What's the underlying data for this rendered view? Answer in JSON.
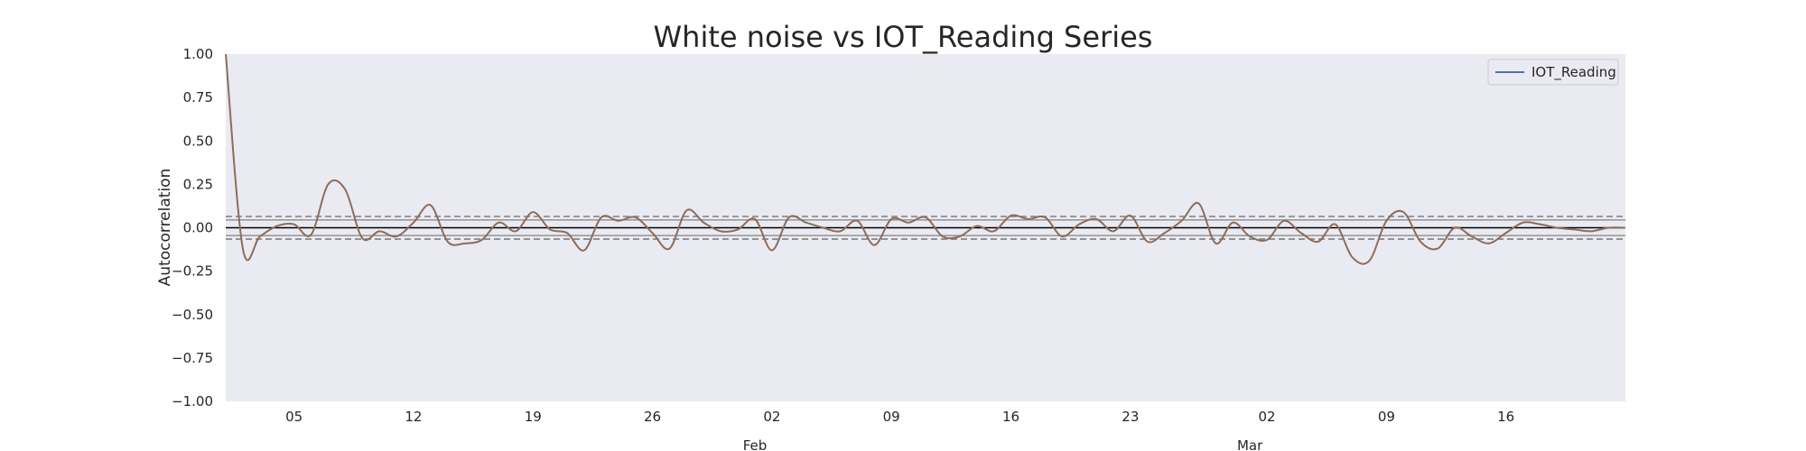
{
  "chart_data": {
    "type": "line",
    "title": "White noise vs IOT_Reading Series",
    "xlabel": "",
    "ylabel": "Autocorrelation",
    "ylim": [
      -1.0,
      1.0
    ],
    "yticks": [
      "1.00",
      "0.75",
      "0.50",
      "0.25",
      "0.00",
      "−0.25",
      "−0.50",
      "−0.75",
      "−1.00"
    ],
    "ytick_values": [
      1.0,
      0.75,
      0.5,
      0.25,
      0.0,
      -0.25,
      -0.5,
      -0.75,
      -1.0
    ],
    "x_start": "2024-01-01",
    "x_end": "2024-03-23",
    "xticks": [
      {
        "date": "2024-01-05",
        "label": "05"
      },
      {
        "date": "2024-01-12",
        "label": "12"
      },
      {
        "date": "2024-01-19",
        "label": "19"
      },
      {
        "date": "2024-01-26",
        "label": "26"
      },
      {
        "date": "2024-02-02",
        "label": "02"
      },
      {
        "date": "2024-02-09",
        "label": "09"
      },
      {
        "date": "2024-02-16",
        "label": "16"
      },
      {
        "date": "2024-02-23",
        "label": "23"
      },
      {
        "date": "2024-03-02",
        "label": "02"
      },
      {
        "date": "2024-03-09",
        "label": "09"
      },
      {
        "date": "2024-03-16",
        "label": "16"
      }
    ],
    "month_labels": [
      {
        "date": "2024-02-01",
        "label": "Feb"
      },
      {
        "date": "2024-03-01",
        "label": "Mar"
      }
    ],
    "series": [
      {
        "name": "IOT_Reading",
        "color": "#8c6d5c",
        "x": [
          "2024-01-01",
          "2024-01-02",
          "2024-01-03",
          "2024-01-04",
          "2024-01-05",
          "2024-01-06",
          "2024-01-07",
          "2024-01-08",
          "2024-01-09",
          "2024-01-10",
          "2024-01-11",
          "2024-01-12",
          "2024-01-13",
          "2024-01-14",
          "2024-01-15",
          "2024-01-16",
          "2024-01-17",
          "2024-01-18",
          "2024-01-19",
          "2024-01-20",
          "2024-01-21",
          "2024-01-22",
          "2024-01-23",
          "2024-01-24",
          "2024-01-25",
          "2024-01-26",
          "2024-01-27",
          "2024-01-28",
          "2024-01-29",
          "2024-01-30",
          "2024-01-31",
          "2024-02-01",
          "2024-02-02",
          "2024-02-03",
          "2024-02-04",
          "2024-02-05",
          "2024-02-06",
          "2024-02-07",
          "2024-02-08",
          "2024-02-09",
          "2024-02-10",
          "2024-02-11",
          "2024-02-12",
          "2024-02-13",
          "2024-02-14",
          "2024-02-15",
          "2024-02-16",
          "2024-02-17",
          "2024-02-18",
          "2024-02-19",
          "2024-02-20",
          "2024-02-21",
          "2024-02-22",
          "2024-02-23",
          "2024-02-24",
          "2024-02-25",
          "2024-02-26",
          "2024-02-27",
          "2024-02-28",
          "2024-02-29",
          "2024-03-01",
          "2024-03-02",
          "2024-03-03",
          "2024-03-04",
          "2024-03-05",
          "2024-03-06",
          "2024-03-07",
          "2024-03-08",
          "2024-03-09",
          "2024-03-10",
          "2024-03-11",
          "2024-03-12",
          "2024-03-13",
          "2024-03-14",
          "2024-03-15",
          "2024-03-16",
          "2024-03-17",
          "2024-03-18",
          "2024-03-19",
          "2024-03-20",
          "2024-03-21",
          "2024-03-22",
          "2024-03-23"
        ],
        "values": [
          1.0,
          -0.12,
          -0.05,
          0.01,
          0.02,
          -0.04,
          0.25,
          0.22,
          -0.06,
          -0.02,
          -0.05,
          0.03,
          0.13,
          -0.08,
          -0.09,
          -0.07,
          0.03,
          -0.02,
          0.09,
          -0.01,
          -0.03,
          -0.13,
          0.06,
          0.04,
          0.06,
          -0.03,
          -0.12,
          0.1,
          0.03,
          -0.02,
          -0.01,
          0.05,
          -0.13,
          0.06,
          0.03,
          0.0,
          -0.02,
          0.04,
          -0.1,
          0.05,
          0.03,
          0.06,
          -0.05,
          -0.05,
          0.01,
          -0.02,
          0.07,
          0.05,
          0.06,
          -0.05,
          0.02,
          0.05,
          -0.02,
          0.07,
          -0.08,
          -0.03,
          0.04,
          0.14,
          -0.09,
          0.03,
          -0.05,
          -0.07,
          0.04,
          -0.03,
          -0.08,
          0.02,
          -0.17,
          -0.19,
          0.04,
          0.09,
          -0.08,
          -0.12,
          0.0,
          -0.05,
          -0.09,
          -0.03,
          0.03,
          0.02,
          0.0,
          -0.01,
          -0.02,
          0.0,
          0.0
        ]
      }
    ],
    "hlines": [
      {
        "value": 0.0,
        "style": "solid",
        "color": "#000000"
      },
      {
        "value": 0.065,
        "style": "dashed",
        "color": "#808080"
      },
      {
        "value": -0.065,
        "style": "dashed",
        "color": "#808080"
      },
      {
        "value": 0.045,
        "style": "solid",
        "color": "#9a9a9a"
      },
      {
        "value": -0.045,
        "style": "solid",
        "color": "#9a9a9a"
      }
    ],
    "legend": {
      "placement": "top-right",
      "entries": [
        {
          "label": "IOT_Reading",
          "color": "#4c72b0"
        }
      ]
    },
    "grid": false,
    "background": "#eaeaf2"
  }
}
